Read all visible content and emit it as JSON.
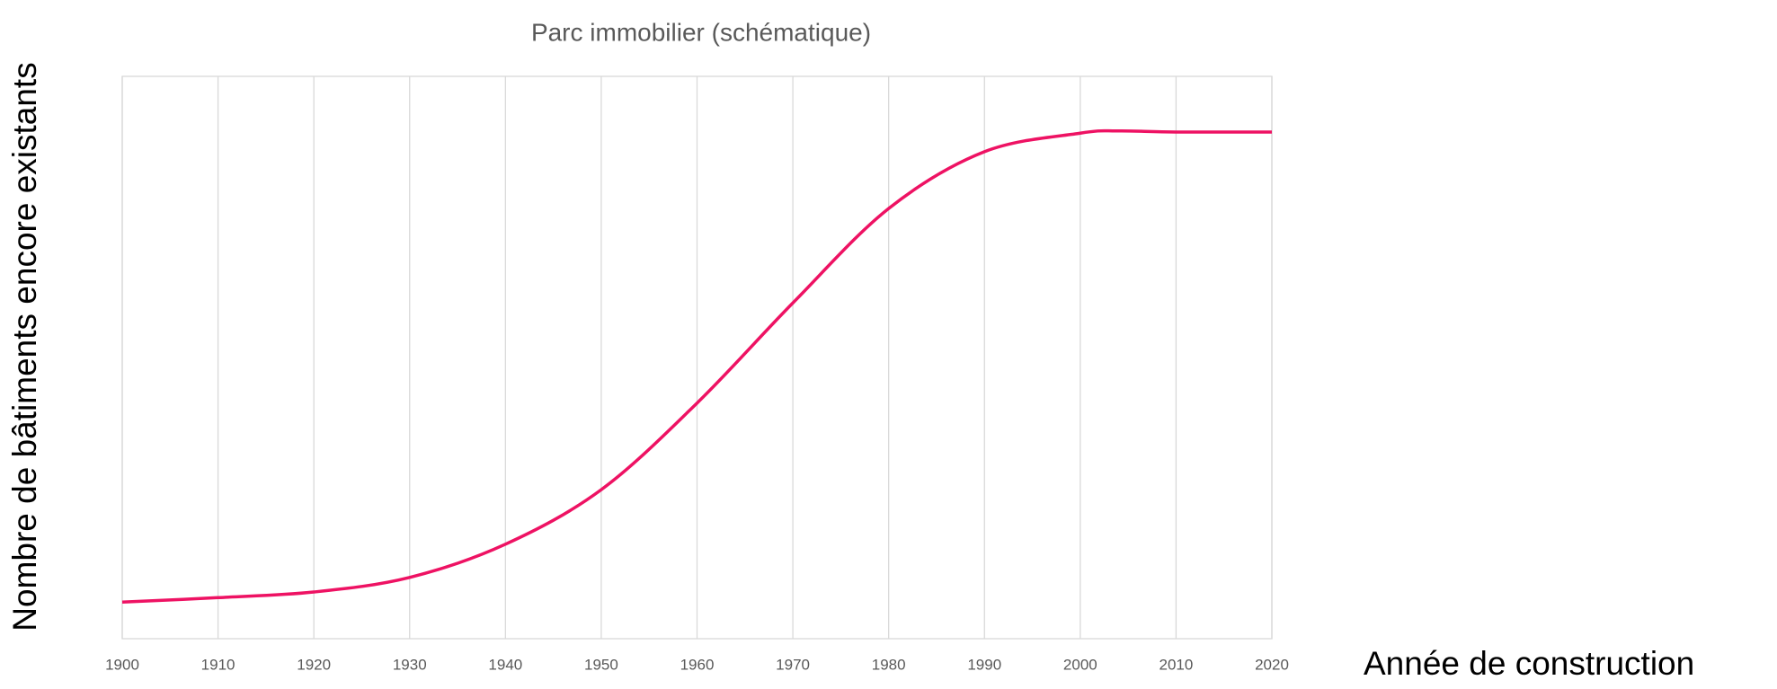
{
  "chart_data": {
    "type": "line",
    "title": "Parc immobilier (schématique)",
    "x_label": "Année de construction",
    "y_label": "Nombre de bâtiments encore existants",
    "x": [
      1900,
      1910,
      1920,
      1930,
      1940,
      1950,
      1960,
      1970,
      1980,
      1990,
      2000,
      2004,
      2010,
      2020
    ],
    "series": [
      {
        "name": "Parc",
        "color": "#ee1263",
        "values": [
          6.5,
          7.3,
          8.3,
          10.9,
          16.8,
          26.5,
          41.9,
          59.7,
          76.5,
          86.6,
          89.9,
          90.3,
          90.1,
          90.1
        ]
      }
    ],
    "xlim": [
      1900,
      2020
    ],
    "xticks": [
      1900,
      1910,
      1920,
      1930,
      1940,
      1950,
      1960,
      1970,
      1980,
      1990,
      2000,
      2010,
      2020
    ],
    "ylim": [
      0,
      100
    ],
    "grid": true
  }
}
